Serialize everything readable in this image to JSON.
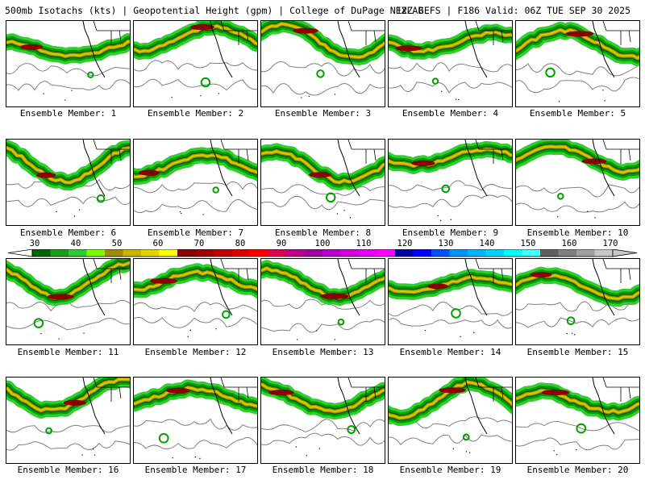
{
  "header": {
    "left": "500mb Isotachs (kts) | Geopotential Height (gpm) | College of DuPage NEXLAB",
    "right": "12Z GEFS | F186 Valid: 06Z TUE SEP 30 2025"
  },
  "member_label_prefix": "Ensemble Member:",
  "members": [
    {
      "number": "1",
      "caption": "Ensemble Member: 1"
    },
    {
      "number": "2",
      "caption": "Ensemble Member: 2"
    },
    {
      "number": "3",
      "caption": "Ensemble Member: 3"
    },
    {
      "number": "4",
      "caption": "Ensemble Member: 4"
    },
    {
      "number": "5",
      "caption": "Ensemble Member: 5"
    },
    {
      "number": "6",
      "caption": "Ensemble Member: 6"
    },
    {
      "number": "7",
      "caption": "Ensemble Member: 7"
    },
    {
      "number": "8",
      "caption": "Ensemble Member: 8"
    },
    {
      "number": "9",
      "caption": "Ensemble Member: 9"
    },
    {
      "number": "10",
      "caption": "Ensemble Member: 10"
    },
    {
      "number": "11",
      "caption": "Ensemble Member: 11"
    },
    {
      "number": "12",
      "caption": "Ensemble Member: 12"
    },
    {
      "number": "13",
      "caption": "Ensemble Member: 13"
    },
    {
      "number": "14",
      "caption": "Ensemble Member: 14"
    },
    {
      "number": "15",
      "caption": "Ensemble Member: 15"
    },
    {
      "number": "16",
      "caption": "Ensemble Member: 16"
    },
    {
      "number": "17",
      "caption": "Ensemble Member: 17"
    },
    {
      "number": "18",
      "caption": "Ensemble Member: 18"
    },
    {
      "number": "19",
      "caption": "Ensemble Member: 19"
    },
    {
      "number": "20",
      "caption": "Ensemble Member: 20"
    }
  ],
  "colorbar": {
    "tick_labels": [
      "30",
      "40",
      "50",
      "60",
      "70",
      "80",
      "90",
      "100",
      "110",
      "120",
      "130",
      "140",
      "150",
      "160",
      "170"
    ],
    "segment_colors": [
      "#006400",
      "#1a9e1a",
      "#2ecc2e",
      "#7cfc00",
      "#a08c00",
      "#c8b400",
      "#e6d200",
      "#ffff00",
      "#8b0000",
      "#a30000",
      "#c00000",
      "#e00000",
      "#ff0000",
      "#e00050",
      "#c0008a",
      "#a000a0",
      "#b400c8",
      "#d200e0",
      "#e600ff",
      "#ff00ff",
      "#0000a0",
      "#0000ff",
      "#0050ff",
      "#0096ff",
      "#00b4ff",
      "#00d2ff",
      "#00ffff",
      "#40ffff",
      "#606060",
      "#808080",
      "#a0a0a0",
      "#c8c8c8"
    ]
  },
  "map_colors": {
    "light_green": "#33cc33",
    "mid_green": "#00a000",
    "dark_green": "#006400",
    "olive": "#9a8a00",
    "yellow": "#d8c800",
    "dark_red": "#8b0000",
    "height_contour": "#808080",
    "coastline": "#000000"
  }
}
